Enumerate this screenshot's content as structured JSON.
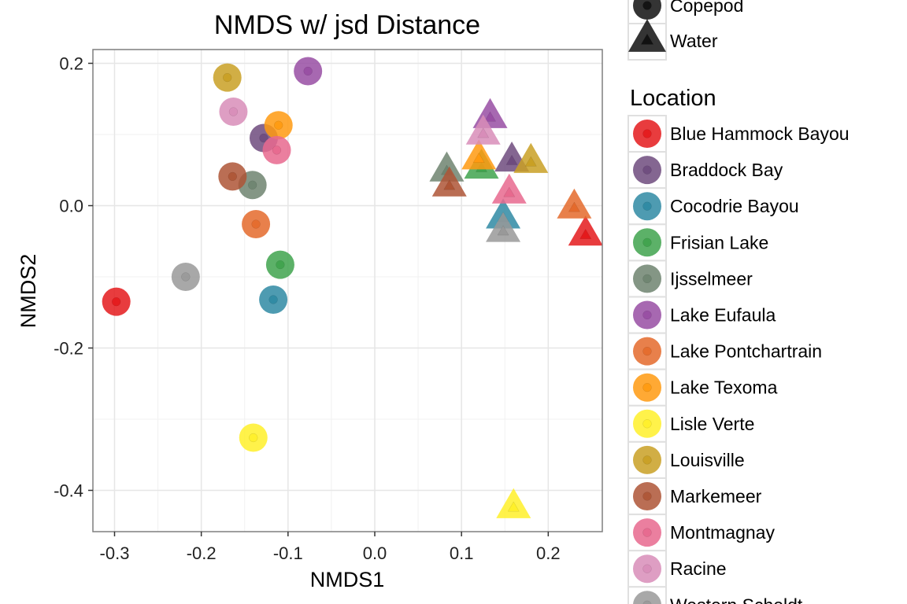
{
  "chart_data": {
    "type": "scatter",
    "title": "NMDS w/ jsd Distance",
    "xlabel": "NMDS1",
    "ylabel": "NMDS2",
    "xlim": [
      -0.33,
      0.27
    ],
    "ylim": [
      -0.46,
      0.22
    ],
    "x_ticks": [
      -0.3,
      -0.2,
      -0.1,
      0.0,
      0.1,
      0.2
    ],
    "x_tick_labels": [
      "-0.3",
      "-0.2",
      "-0.1",
      "0.0",
      "0.1",
      "0.2"
    ],
    "y_ticks": [
      -0.4,
      -0.2,
      0.0,
      0.2
    ],
    "y_tick_labels": [
      "-0.4",
      "-0.2",
      "0.0",
      "0.2"
    ],
    "grid": true,
    "legend_position": "right",
    "shape_legend": {
      "entries": [
        {
          "label": "Copepod",
          "shape": "circle"
        },
        {
          "label": "Water",
          "shape": "triangle"
        }
      ]
    },
    "color_legend": {
      "title": "Location",
      "entries": [
        {
          "label": "Blue Hammock Bayou",
          "color": "#E41A1C"
        },
        {
          "label": "Braddock Bay",
          "color": "#6E4B7E"
        },
        {
          "label": "Cocodrie Bayou",
          "color": "#2F8AA3"
        },
        {
          "label": "Frisian Lake",
          "color": "#3FA34D"
        },
        {
          "label": "Ijsselmeer",
          "color": "#6E8470"
        },
        {
          "label": "Lake Eufaula",
          "color": "#984EA3"
        },
        {
          "label": "Lake Pontchartrain",
          "color": "#E46A2C"
        },
        {
          "label": "Lake Texoma",
          "color": "#FF9A10"
        },
        {
          "label": "Lisle Verte",
          "color": "#FFF02A"
        },
        {
          "label": "Louisville",
          "color": "#C9A024"
        },
        {
          "label": "Markemeer",
          "color": "#AE5536"
        },
        {
          "label": "Montmagnay",
          "color": "#E7698E"
        },
        {
          "label": "Racine",
          "color": "#D88DB9"
        },
        {
          "label": "Western Scheldt",
          "color": "#999999"
        }
      ]
    },
    "points": [
      {
        "location": "Blue Hammock Bayou",
        "type": "Copepod",
        "x": -0.298,
        "y": -0.135
      },
      {
        "location": "Braddock Bay",
        "type": "Copepod",
        "x": -0.128,
        "y": 0.095
      },
      {
        "location": "Cocodrie Bayou",
        "type": "Copepod",
        "x": -0.117,
        "y": -0.132
      },
      {
        "location": "Frisian Lake",
        "type": "Copepod",
        "x": -0.109,
        "y": -0.083
      },
      {
        "location": "Ijsselmeer",
        "type": "Copepod",
        "x": -0.141,
        "y": 0.029
      },
      {
        "location": "Lake Eufaula",
        "type": "Copepod",
        "x": -0.077,
        "y": 0.189
      },
      {
        "location": "Lake Pontchartrain",
        "type": "Copepod",
        "x": -0.137,
        "y": -0.026
      },
      {
        "location": "Lake Texoma",
        "type": "Copepod",
        "x": -0.111,
        "y": 0.113
      },
      {
        "location": "Lisle Verte",
        "type": "Copepod",
        "x": -0.14,
        "y": -0.326
      },
      {
        "location": "Louisville",
        "type": "Copepod",
        "x": -0.17,
        "y": 0.18
      },
      {
        "location": "Markemeer",
        "type": "Copepod",
        "x": -0.164,
        "y": 0.041
      },
      {
        "location": "Montmagnay",
        "type": "Copepod",
        "x": -0.113,
        "y": 0.078
      },
      {
        "location": "Racine",
        "type": "Copepod",
        "x": -0.163,
        "y": 0.132
      },
      {
        "location": "Western Scheldt",
        "type": "Copepod",
        "x": -0.218,
        "y": -0.1
      },
      {
        "location": "Blue Hammock Bayou",
        "type": "Water",
        "x": 0.243,
        "y": -0.042
      },
      {
        "location": "Braddock Bay",
        "type": "Water",
        "x": 0.158,
        "y": 0.062
      },
      {
        "location": "Cocodrie Bayou",
        "type": "Water",
        "x": 0.148,
        "y": -0.018
      },
      {
        "location": "Frisian Lake",
        "type": "Water",
        "x": 0.123,
        "y": 0.052
      },
      {
        "location": "Ijsselmeer",
        "type": "Water",
        "x": 0.083,
        "y": 0.048
      },
      {
        "location": "Lake Eufaula",
        "type": "Water",
        "x": 0.133,
        "y": 0.123
      },
      {
        "location": "Lake Pontchartrain",
        "type": "Water",
        "x": 0.23,
        "y": -0.004
      },
      {
        "location": "Lake Texoma",
        "type": "Water",
        "x": 0.12,
        "y": 0.065
      },
      {
        "location": "Lisle Verte",
        "type": "Water",
        "x": 0.16,
        "y": -0.425
      },
      {
        "location": "Louisville",
        "type": "Water",
        "x": 0.18,
        "y": 0.06
      },
      {
        "location": "Markemeer",
        "type": "Water",
        "x": 0.086,
        "y": 0.027
      },
      {
        "location": "Montmagnay",
        "type": "Water",
        "x": 0.155,
        "y": 0.017
      },
      {
        "location": "Racine",
        "type": "Water",
        "x": 0.125,
        "y": 0.1
      },
      {
        "location": "Western Scheldt",
        "type": "Water",
        "x": 0.148,
        "y": -0.037
      }
    ]
  }
}
